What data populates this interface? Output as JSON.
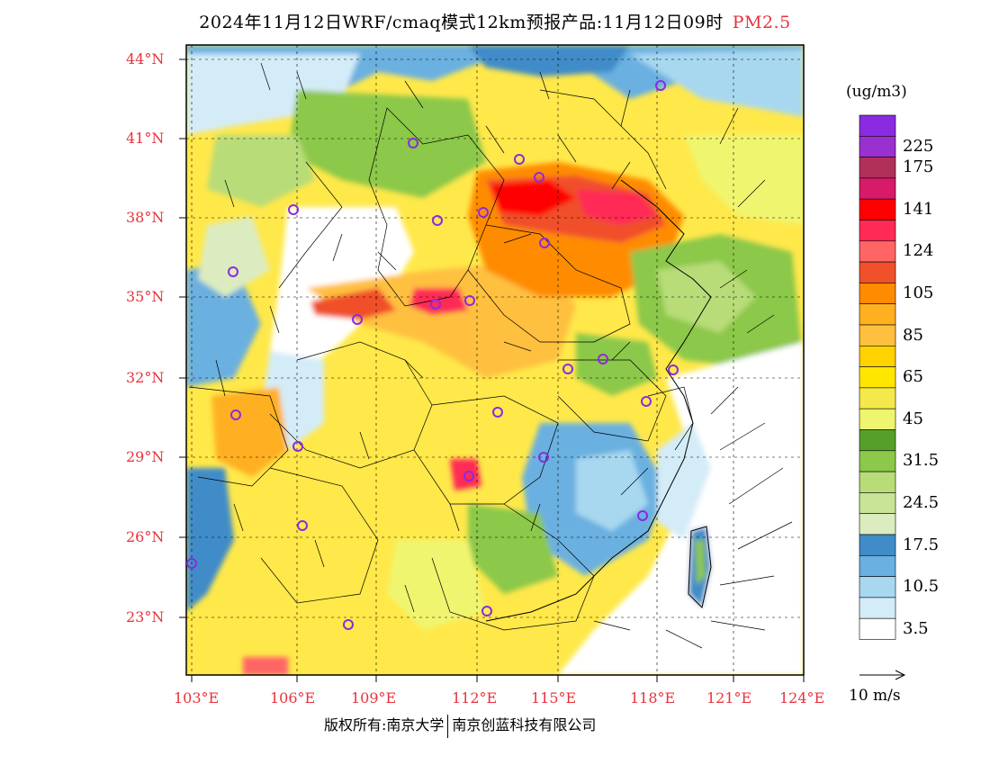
{
  "title": {
    "main": "2024年11月12日WRF/cmaq模式12km预报产品:11月12日09时",
    "variable": "PM2.5"
  },
  "map": {
    "lon_range": [
      103,
      124
    ],
    "lat_range": [
      21,
      44.5
    ],
    "lat_ticks": [
      "44°N",
      "41°N",
      "38°N",
      "35°N",
      "32°N",
      "29°N",
      "26°N",
      "23°N"
    ],
    "lon_ticks": [
      "103°E",
      "106°E",
      "109°E",
      "112°E",
      "115°E",
      "118°E",
      "121°E",
      "124°E"
    ],
    "station_marker_color": "#8a2be2"
  },
  "legend": {
    "unit": "(ug/m3)",
    "bins": [
      {
        "color": "#8a2be2",
        "label": ""
      },
      {
        "color": "#9b30d0",
        "label": "225"
      },
      {
        "color": "#b0305a",
        "label": "175"
      },
      {
        "color": "#d81a6a",
        "label": ""
      },
      {
        "color": "#ff0000",
        "label": "141"
      },
      {
        "color": "#ff2a55",
        "label": ""
      },
      {
        "color": "#ff6565",
        "label": "124"
      },
      {
        "color": "#f0502a",
        "label": ""
      },
      {
        "color": "#ff8c00",
        "label": "105"
      },
      {
        "color": "#ffb020",
        "label": ""
      },
      {
        "color": "#ffc040",
        "label": "85"
      },
      {
        "color": "#ffd200",
        "label": ""
      },
      {
        "color": "#ffe600",
        "label": "65"
      },
      {
        "color": "#f5e84a",
        "label": ""
      },
      {
        "color": "#f0f570",
        "label": "45"
      },
      {
        "color": "#55a02a",
        "label": ""
      },
      {
        "color": "#8cc84a",
        "label": "31.5"
      },
      {
        "color": "#b8dc78",
        "label": ""
      },
      {
        "color": "#c8e496",
        "label": "24.5"
      },
      {
        "color": "#dcecc0",
        "label": ""
      },
      {
        "color": "#3f8cc8",
        "label": "17.5"
      },
      {
        "color": "#6ab0e0",
        "label": ""
      },
      {
        "color": "#a8d8f0",
        "label": "10.5"
      },
      {
        "color": "#d4ecf8",
        "label": ""
      },
      {
        "color": "#ffffff",
        "label": "3.5"
      }
    ]
  },
  "wind_scale": {
    "label": "10 m/s"
  },
  "footer": {
    "copyright": "版权所有:南京大学",
    "company": "南京创蓝科技有限公司"
  }
}
